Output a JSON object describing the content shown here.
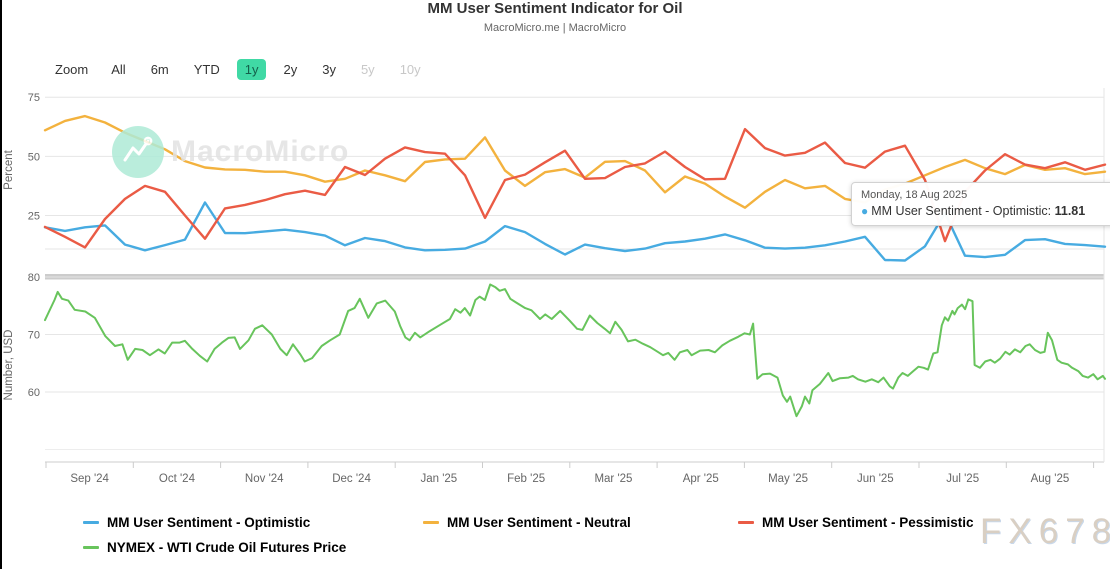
{
  "header": {
    "title": "MM User Sentiment Indicator for Oil",
    "subtitle": "MacroMicro.me | MacroMicro"
  },
  "toolbar": {
    "zoom_label": "Zoom",
    "buttons": [
      {
        "label": "All",
        "state": "normal"
      },
      {
        "label": "6m",
        "state": "normal"
      },
      {
        "label": "YTD",
        "state": "normal"
      },
      {
        "label": "1y",
        "state": "selected"
      },
      {
        "label": "2y",
        "state": "normal"
      },
      {
        "label": "3y",
        "state": "normal"
      },
      {
        "label": "5y",
        "state": "disabled"
      },
      {
        "label": "10y",
        "state": "disabled"
      }
    ],
    "selected_bg": "#40d9a5"
  },
  "tooltip": {
    "date": "Monday, 18 Aug 2025",
    "marker": "●",
    "marker_color": "#47abe1",
    "series_label": "MM User Sentiment - Optimistic:",
    "value": "11.81"
  },
  "watermark": {
    "brand": "MacroMicro",
    "fx": "FX678"
  },
  "chart_data": {
    "type": "line",
    "title": "MM User Sentiment Indicator for Oil",
    "x_range": [
      "18 Aug 2024",
      "18 Aug 2025"
    ],
    "x_tick_labels": [
      "Sep '24",
      "Oct '24",
      "Nov '24",
      "Dec '24",
      "Jan '25",
      "Feb '25",
      "Mar '25",
      "Apr '25",
      "May '25",
      "Jun '25",
      "Jul '25",
      "Aug '25"
    ],
    "grid": true,
    "legend_position": "bottom-left",
    "panes": [
      {
        "axis_title": "Percent",
        "ticks": [
          75,
          50,
          25
        ],
        "ylim": [
          0,
          80
        ],
        "series": [
          {
            "name": "MM User Sentiment - Optimistic",
            "slug": "optimistic",
            "color": "#47abe1",
            "values": [
              20,
              18.5,
              20,
              20.8,
              12.7,
              10.3,
              12.5,
              14.8,
              30.5,
              17.6,
              17.5,
              18.3,
              19,
              18,
              16.5,
              12.4,
              15.5,
              14.2,
              11.5,
              10.3,
              10.5,
              11,
              14,
              20.5,
              18,
              13,
              8.5,
              12.7,
              11.2,
              10,
              11,
              13.3,
              14,
              15.2,
              17,
              14.5,
              11.4,
              11,
              11.4,
              12.4,
              14,
              16,
              6.2,
              6,
              12,
              26,
              8,
              7.4,
              8.4,
              14.6,
              15,
              13,
              12.5,
              11.81
            ]
          },
          {
            "name": "MM User Sentiment - Neutral",
            "slug": "neutral",
            "color": "#f3b23e",
            "values": [
              61,
              65,
              67,
              64.3,
              60,
              56.5,
              53,
              48,
              45.3,
              44.5,
              44.3,
              43.5,
              43.5,
              42,
              39.3,
              40.5,
              44,
              42,
              39.5,
              47.6,
              48.7,
              49,
              58,
              44,
              37.5,
              43.3,
              44.6,
              41,
              47.7,
              48,
              44,
              34.8,
              41.5,
              38.5,
              33,
              28.3,
              35,
              40,
              36.5,
              37.5,
              32,
              30.5,
              36,
              38.5,
              42,
              45.5,
              48.5,
              45,
              42.5,
              46.4,
              44.3,
              45,
              42.5,
              43.5
            ]
          },
          {
            "name": "MM User Sentiment - Pessimistic",
            "slug": "pessimistic",
            "color": "#ea5b45",
            "values": [
              20.2,
              16,
              11.5,
              23.5,
              32,
              37.5,
              35,
              25,
              15.2,
              28,
              29.5,
              31.5,
              34,
              35.5,
              33.7,
              45.5,
              42.1,
              49,
              53.8,
              51.8,
              51.1,
              42,
              24,
              40,
              42.3,
              47.5,
              52.4,
              40.5,
              40.8,
              45.5,
              47,
              52,
              45.5,
              40.3,
              40.5,
              61.5,
              53.5,
              50.3,
              51.5,
              55.8,
              47.2,
              45.2,
              52,
              54.5,
              40,
              14.2,
              35,
              44,
              50.9,
              46.5,
              45,
              47.5,
              44.3,
              46.5
            ]
          }
        ]
      },
      {
        "axis_title": "Number, USD",
        "ticks": [
          80,
          70,
          60
        ],
        "ylim": [
          50,
          82
        ],
        "series": [
          {
            "name": "NYMEX - WTI Crude Oil Futures Price",
            "slug": "wti",
            "color": "#68c45c",
            "points": [
              [
                0,
                72.5
              ],
              [
                0.009,
                76
              ],
              [
                0.012,
                77.4
              ],
              [
                0.016,
                76.2
              ],
              [
                0.022,
                75.9
              ],
              [
                0.028,
                74.3
              ],
              [
                0.038,
                74
              ],
              [
                0.047,
                72.9
              ],
              [
                0.057,
                69.7
              ],
              [
                0.066,
                68
              ],
              [
                0.073,
                68.3
              ],
              [
                0.078,
                65.6
              ],
              [
                0.085,
                67.5
              ],
              [
                0.092,
                67.3
              ],
              [
                0.099,
                66.4
              ],
              [
                0.107,
                67.4
              ],
              [
                0.113,
                66.7
              ],
              [
                0.12,
                68.6
              ],
              [
                0.127,
                68.6
              ],
              [
                0.132,
                68.9
              ],
              [
                0.139,
                67.5
              ],
              [
                0.146,
                66.3
              ],
              [
                0.153,
                65.3
              ],
              [
                0.16,
                67.5
              ],
              [
                0.167,
                68.6
              ],
              [
                0.173,
                69.4
              ],
              [
                0.179,
                69.5
              ],
              [
                0.184,
                67.5
              ],
              [
                0.192,
                69
              ],
              [
                0.198,
                71
              ],
              [
                0.205,
                71.6
              ],
              [
                0.214,
                70
              ],
              [
                0.222,
                67.5
              ],
              [
                0.228,
                66.4
              ],
              [
                0.234,
                68.3
              ],
              [
                0.241,
                66.5
              ],
              [
                0.245,
                65.3
              ],
              [
                0.252,
                65.9
              ],
              [
                0.261,
                68
              ],
              [
                0.269,
                69
              ],
              [
                0.278,
                70
              ],
              [
                0.286,
                74.1
              ],
              [
                0.292,
                74.6
              ],
              [
                0.297,
                76.2
              ],
              [
                0.305,
                72.9
              ],
              [
                0.313,
                75.4
              ],
              [
                0.321,
                75.9
              ],
              [
                0.33,
                74
              ],
              [
                0.335,
                71.5
              ],
              [
                0.34,
                69.5
              ],
              [
                0.344,
                69
              ],
              [
                0.349,
                70.3
              ],
              [
                0.354,
                69.5
              ],
              [
                0.363,
                70.6
              ],
              [
                0.373,
                71.7
              ],
              [
                0.382,
                72.7
              ],
              [
                0.387,
                74.4
              ],
              [
                0.392,
                73.8
              ],
              [
                0.396,
                74.6
              ],
              [
                0.401,
                73.3
              ],
              [
                0.406,
                76
              ],
              [
                0.41,
                76.6
              ],
              [
                0.415,
                76
              ],
              [
                0.42,
                78.7
              ],
              [
                0.425,
                78.2
              ],
              [
                0.429,
                77.6
              ],
              [
                0.434,
                77.9
              ],
              [
                0.439,
                76.2
              ],
              [
                0.445,
                75.5
              ],
              [
                0.453,
                74.6
              ],
              [
                0.459,
                74.2
              ],
              [
                0.467,
                72.7
              ],
              [
                0.472,
                73.5
              ],
              [
                0.478,
                72.7
              ],
              [
                0.486,
                74.1
              ],
              [
                0.495,
                72.4
              ],
              [
                0.502,
                71
              ],
              [
                0.507,
                70.8
              ],
              [
                0.514,
                73.3
              ],
              [
                0.521,
                72
              ],
              [
                0.528,
                71
              ],
              [
                0.533,
                70.2
              ],
              [
                0.538,
                72.2
              ],
              [
                0.544,
                70.8
              ],
              [
                0.55,
                68.8
              ],
              [
                0.557,
                69.1
              ],
              [
                0.564,
                68.4
              ],
              [
                0.571,
                67.8
              ],
              [
                0.578,
                67
              ],
              [
                0.583,
                66.4
              ],
              [
                0.588,
                66.8
              ],
              [
                0.594,
                65.6
              ],
              [
                0.599,
                66.9
              ],
              [
                0.606,
                67.3
              ],
              [
                0.61,
                66.4
              ],
              [
                0.618,
                67.2
              ],
              [
                0.626,
                67.3
              ],
              [
                0.632,
                66.9
              ],
              [
                0.639,
                68.1
              ],
              [
                0.646,
                68.9
              ],
              [
                0.654,
                69.6
              ],
              [
                0.66,
                70.2
              ],
              [
                0.665,
                70
              ],
              [
                0.668,
                71.9
              ],
              [
                0.672,
                62.3
              ],
              [
                0.677,
                63.1
              ],
              [
                0.684,
                63.2
              ],
              [
                0.691,
                62.5
              ],
              [
                0.696,
                59.4
              ],
              [
                0.7,
                58.3
              ],
              [
                0.703,
                59.2
              ],
              [
                0.707,
                56.9
              ],
              [
                0.709,
                55.8
              ],
              [
                0.714,
                57.5
              ],
              [
                0.717,
                59.2
              ],
              [
                0.721,
                58
              ],
              [
                0.724,
                60.3
              ],
              [
                0.731,
                61.4
              ],
              [
                0.739,
                63.3
              ],
              [
                0.743,
                61.9
              ],
              [
                0.75,
                62.4
              ],
              [
                0.758,
                62.5
              ],
              [
                0.762,
                62.8
              ],
              [
                0.767,
                62.2
              ],
              [
                0.774,
                61.8
              ],
              [
                0.78,
                62.2
              ],
              [
                0.786,
                61.7
              ],
              [
                0.791,
                62.5
              ],
              [
                0.797,
                61
              ],
              [
                0.8,
                60.6
              ],
              [
                0.805,
                62.5
              ],
              [
                0.809,
                63.3
              ],
              [
                0.814,
                62.8
              ],
              [
                0.819,
                63.6
              ],
              [
                0.824,
                64.4
              ],
              [
                0.829,
                64.2
              ],
              [
                0.833,
                63.9
              ],
              [
                0.838,
                66.7
              ],
              [
                0.842,
                66.9
              ],
              [
                0.846,
                71.6
              ],
              [
                0.849,
                73
              ],
              [
                0.852,
                72.4
              ],
              [
                0.856,
                74.1
              ],
              [
                0.858,
                73.5
              ],
              [
                0.861,
                74.6
              ],
              [
                0.865,
                75.2
              ],
              [
                0.868,
                74.4
              ],
              [
                0.871,
                76.1
              ],
              [
                0.875,
                75.8
              ],
              [
                0.877,
                64.7
              ],
              [
                0.882,
                64.2
              ],
              [
                0.887,
                65.3
              ],
              [
                0.892,
                65.6
              ],
              [
                0.896,
                65.1
              ],
              [
                0.901,
                65.8
              ],
              [
                0.906,
                67
              ],
              [
                0.91,
                66.5
              ],
              [
                0.915,
                67.4
              ],
              [
                0.92,
                66.9
              ],
              [
                0.925,
                68
              ],
              [
                0.929,
                68.3
              ],
              [
                0.934,
                67.3
              ],
              [
                0.939,
                66.8
              ],
              [
                0.943,
                67
              ],
              [
                0.946,
                70.3
              ],
              [
                0.95,
                69
              ],
              [
                0.955,
                65.6
              ],
              [
                0.959,
                65.1
              ],
              [
                0.965,
                64.8
              ],
              [
                0.969,
                64.2
              ],
              [
                0.975,
                63.6
              ],
              [
                0.979,
                62.8
              ],
              [
                0.984,
                62.5
              ],
              [
                0.989,
                63.1
              ],
              [
                0.993,
                62.2
              ],
              [
                0.998,
                62.8
              ],
              [
                1,
                62.3
              ]
            ]
          }
        ]
      }
    ],
    "legend": [
      {
        "label": "MM User Sentiment - Optimistic",
        "color": "#47abe1"
      },
      {
        "label": "MM User Sentiment - Neutral",
        "color": "#f3b23e"
      },
      {
        "label": "MM User Sentiment - Pessimistic",
        "color": "#ea5b45"
      },
      {
        "label": "NYMEX - WTI Crude Oil Futures Price",
        "color": "#68c45c"
      }
    ]
  }
}
